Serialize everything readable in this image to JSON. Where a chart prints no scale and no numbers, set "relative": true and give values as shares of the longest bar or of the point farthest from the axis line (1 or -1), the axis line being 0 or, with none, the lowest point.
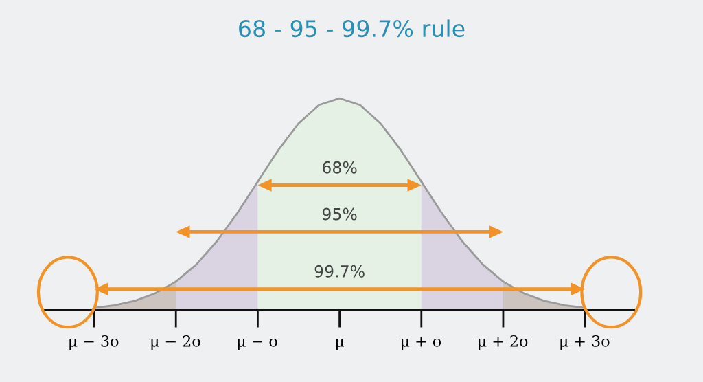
{
  "chart_data": {
    "type": "area",
    "title": "68 - 95 - 99.7% rule",
    "relative": true,
    "series": [
      {
        "color": "#e4f1e4",
        "x": [
          -1.0,
          -0.75,
          -0.5,
          -0.25,
          0.0,
          0.25,
          0.5,
          0.75,
          1.0
        ],
        "values": [
          0.607,
          0.755,
          0.882,
          0.969,
          1.0,
          0.969,
          0.882,
          0.755,
          0.607
        ]
      },
      {
        "color": "#d9d3e2",
        "x": [
          -2.0,
          -1.75,
          -1.5,
          -1.25,
          -1.0,
          0.0,
          1.0,
          1.25,
          1.5,
          1.75,
          2.0
        ],
        "values": [
          0.135,
          0.216,
          0.325,
          0.458,
          0.607,
          null,
          0.607,
          0.458,
          0.325,
          0.216,
          0.135
        ]
      },
      {
        "color": "#cdc4bf",
        "x": [
          -3.0,
          -2.75,
          -2.5,
          -2.25,
          -2.0,
          0.0,
          2.0,
          2.25,
          2.5,
          2.75,
          3.0
        ],
        "values": [
          0.011,
          0.023,
          0.044,
          0.08,
          0.135,
          null,
          0.135,
          0.08,
          0.044,
          0.023,
          0.011
        ]
      }
    ],
    "xlim": [
      -3.6,
      3.6
    ],
    "xticks": [
      {
        "value": -3,
        "label": "μ − 3σ"
      },
      {
        "value": -2,
        "label": "μ − 2σ"
      },
      {
        "value": -1,
        "label": "μ − σ"
      },
      {
        "value": 0,
        "label": "μ"
      },
      {
        "value": 1,
        "label": "μ + σ"
      },
      {
        "value": 2,
        "label": "μ + 2σ"
      },
      {
        "value": 3,
        "label": "μ + 3σ"
      }
    ],
    "annotations": [
      "68%",
      "95%",
      "99.7%"
    ],
    "tick_labels": "x"
  }
}
